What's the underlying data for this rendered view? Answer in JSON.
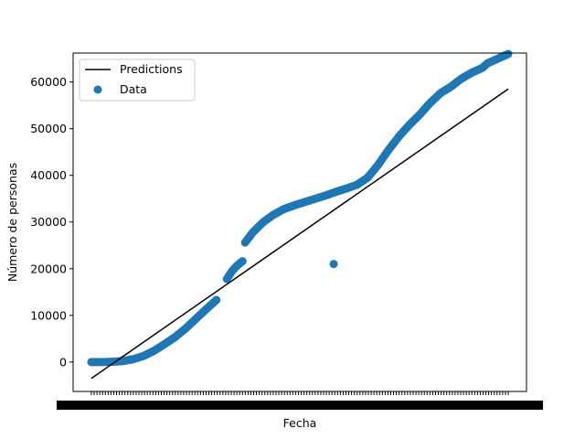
{
  "chart_data": {
    "type": "scatter",
    "xlabel": "Fecha",
    "ylabel": "Número de personas",
    "ylim": [
      -3500,
      66000
    ],
    "yticks": [
      0,
      10000,
      20000,
      30000,
      40000,
      50000,
      60000
    ],
    "xtick_labels_unreadable": true,
    "legend": {
      "position": "top-left",
      "entries": [
        "Predictions",
        "Data"
      ]
    },
    "series": [
      {
        "name": "Predictions",
        "kind": "line",
        "color": "#000000",
        "x": [
          0,
          160
        ],
        "y": [
          -3500,
          58500
        ]
      },
      {
        "name": "Data",
        "kind": "scatter",
        "color": "#1f77b4",
        "x": [
          0,
          4,
          8,
          12,
          16,
          20,
          24,
          28,
          32,
          36,
          40,
          44,
          48,
          52,
          54,
          56,
          58,
          59,
          62,
          66,
          70,
          74,
          78,
          82,
          86,
          90,
          94,
          98,
          102,
          106,
          110,
          114,
          118,
          122,
          126,
          130,
          134,
          138,
          142,
          146,
          150,
          152,
          154,
          156,
          158,
          160,
          93
        ],
        "y": [
          0,
          0,
          50,
          200,
          600,
          1300,
          2400,
          3800,
          5300,
          7100,
          9200,
          11300,
          13300,
          17800,
          19500,
          20700,
          21600,
          25600,
          27800,
          30000,
          31600,
          32800,
          33600,
          34300,
          35000,
          35700,
          36500,
          37200,
          38000,
          39500,
          42200,
          45400,
          48300,
          50800,
          53000,
          55500,
          57600,
          59000,
          60700,
          62000,
          63000,
          64000,
          64500,
          65000,
          65500,
          66000,
          21000
        ]
      }
    ]
  },
  "legend": {
    "predictions_label": "Predictions",
    "data_label": "Data"
  },
  "axes": {
    "xlabel": "Fecha",
    "ylabel": "Número de personas"
  }
}
